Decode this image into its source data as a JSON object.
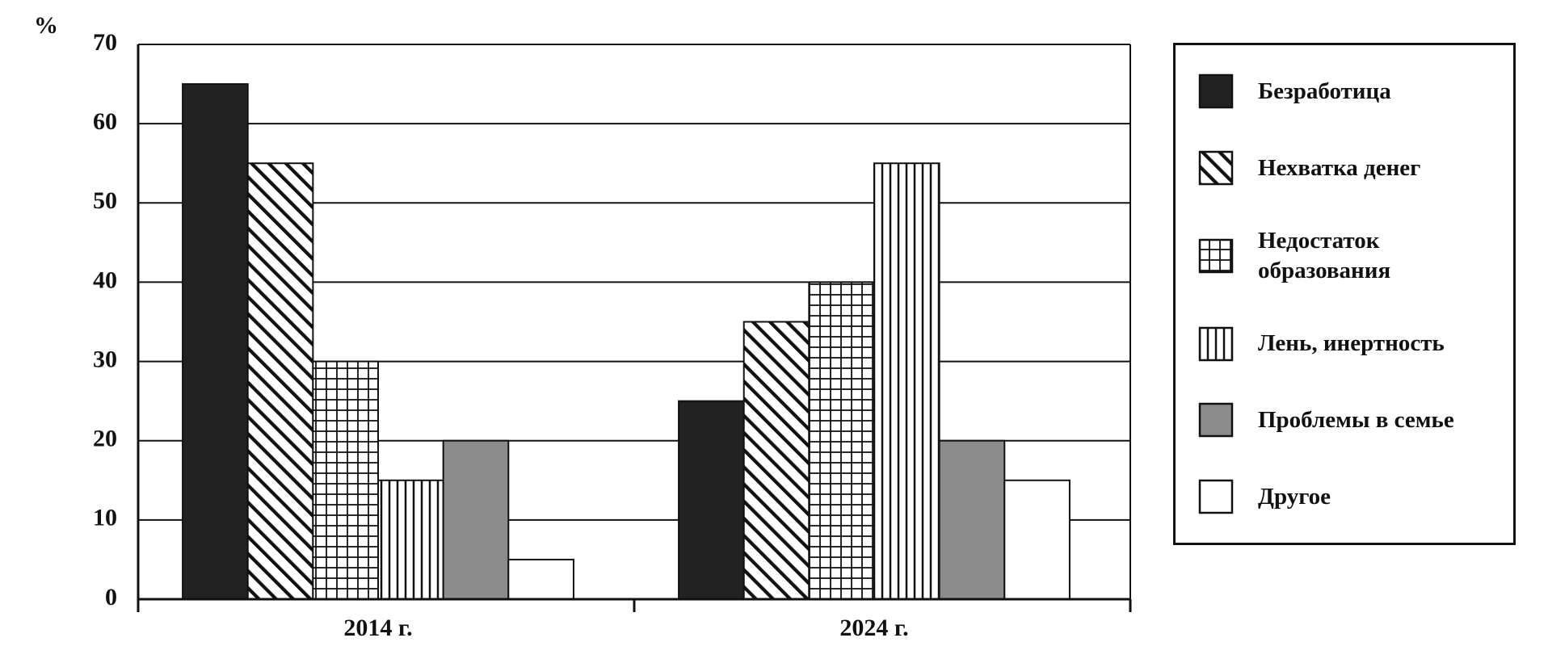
{
  "chart_data": {
    "type": "bar",
    "y_label": "%",
    "categories": [
      "2014 г.",
      "2024 г."
    ],
    "series": [
      {
        "name": "Безработица",
        "color": "#222222",
        "pattern": "solid",
        "values": [
          65,
          25
        ]
      },
      {
        "name": "Нехватка денег",
        "color": "#ffffff",
        "pattern": "diagonal",
        "values": [
          55,
          35
        ]
      },
      {
        "name": "Недостаток образования",
        "color": "#ffffff",
        "pattern": "grid",
        "values": [
          30,
          40
        ]
      },
      {
        "name": "Лень, инертность",
        "color": "#ffffff",
        "pattern": "vertical",
        "values": [
          15,
          55
        ]
      },
      {
        "name": "Проблемы в семье",
        "color": "#8c8c8c",
        "pattern": "solid",
        "values": [
          20,
          20
        ]
      },
      {
        "name": "Другое",
        "color": "#ffffff",
        "pattern": "solid",
        "values": [
          5,
          15
        ]
      }
    ],
    "ylim": [
      0,
      70
    ],
    "yticks": [
      0,
      10,
      20,
      30,
      40,
      50,
      60,
      70
    ],
    "grid": true,
    "legend": "right"
  }
}
